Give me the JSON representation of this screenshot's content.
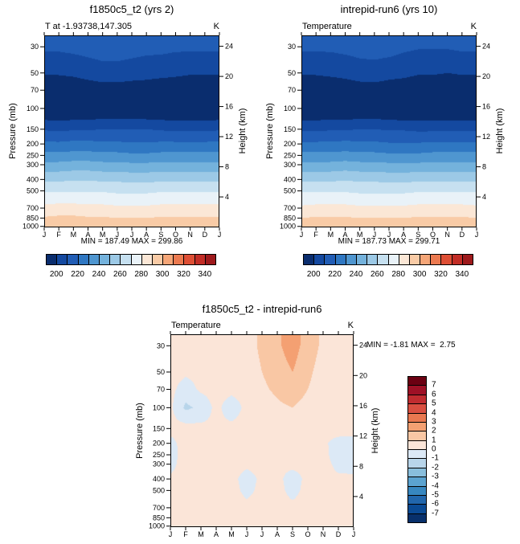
{
  "chart_data": [
    {
      "type": "filled-contour",
      "title": "f1850c5_t2 (yrs 2)",
      "sub_left": "T at -1.93738,147.305",
      "sub_right": "K",
      "minmax": "MIN = 187.49 MAX = 299.86",
      "ylabel_left": "Pressure (mb)",
      "ylabel_right": "Height (km)",
      "x_ticklabels": [
        "J",
        "F",
        "M",
        "A",
        "M",
        "J",
        "J",
        "A",
        "S",
        "O",
        "N",
        "D",
        "J"
      ],
      "y_ticklabels": [
        "30",
        "50",
        "70",
        "100",
        "150",
        "200",
        "250",
        "300",
        "400",
        "500",
        "700",
        "850",
        "1000"
      ],
      "height_ticks_km": [
        4,
        8,
        12,
        16,
        20,
        24
      ],
      "y_axis": "log-pressure",
      "ylim_mb": [
        30,
        1000
      ],
      "bins": {
        "start": 190,
        "size": 10,
        "unit": "K"
      },
      "colors": [
        "#0a2d6e",
        "#1449a0",
        "#215db5",
        "#2f77c2",
        "#4f96d0",
        "#74b2dc",
        "#9cc9e6",
        "#c6e0f0",
        "#e9f2f8",
        "#fbe7d6",
        "#f9cba6",
        "#f5a678",
        "#ec7a50",
        "#de4f35",
        "#c22d26",
        "#9e1a1c"
      ],
      "colorbar_labels": [
        "200",
        "220",
        "240",
        "260",
        "280",
        "300",
        "320",
        "340"
      ],
      "colorbar_label_boundaries": [
        1,
        3,
        5,
        7,
        9,
        11,
        13,
        15
      ],
      "grid": {
        "levels_mb": [
          30,
          50,
          70,
          100,
          150,
          200,
          250,
          300,
          400,
          500,
          700,
          850,
          1000
        ],
        "months": [
          "J",
          "F",
          "M",
          "A",
          "M",
          "J",
          "J",
          "A",
          "S",
          "O",
          "N",
          "D",
          "J"
        ],
        "values": [
          [
            212,
            212,
            213,
            214,
            215,
            215,
            214,
            213,
            213,
            212,
            212,
            212,
            212
          ],
          [
            201,
            201,
            202,
            204,
            206,
            206,
            205,
            204,
            203,
            202,
            201,
            201,
            201
          ],
          [
            193,
            193,
            193,
            194,
            195,
            195,
            194,
            194,
            193,
            193,
            192,
            192,
            193
          ],
          [
            189,
            188,
            189,
            189,
            190,
            190,
            190,
            189,
            189,
            188,
            188,
            188,
            189
          ],
          [
            209,
            208,
            209,
            209,
            210,
            210,
            210,
            210,
            209,
            208,
            208,
            208,
            209
          ],
          [
            222,
            222,
            223,
            223,
            222,
            222,
            221,
            221,
            222,
            222,
            222,
            222,
            222
          ],
          [
            233,
            233,
            234,
            234,
            233,
            233,
            232,
            232,
            233,
            233,
            233,
            233,
            233
          ],
          [
            243,
            243,
            244,
            244,
            243,
            243,
            242,
            242,
            243,
            243,
            243,
            243,
            243
          ],
          [
            258,
            258,
            259,
            259,
            258,
            258,
            257,
            257,
            258,
            258,
            258,
            258,
            258
          ],
          [
            269,
            269,
            269,
            269,
            269,
            268,
            268,
            268,
            269,
            269,
            269,
            269,
            269
          ],
          [
            283,
            284,
            284,
            283,
            283,
            282,
            282,
            282,
            283,
            283,
            283,
            283,
            283
          ],
          [
            291,
            292,
            292,
            291,
            291,
            290,
            290,
            290,
            291,
            291,
            291,
            291,
            291
          ],
          [
            299,
            300,
            300,
            299,
            299,
            298,
            298,
            298,
            299,
            299,
            299,
            299,
            299
          ]
        ]
      }
    },
    {
      "type": "filled-contour",
      "title": "intrepid-run6 (yrs 10)",
      "sub_left": "Temperature",
      "sub_right": "K",
      "minmax": "MIN = 187.73 MAX = 299.71",
      "ylabel_left": "Pressure (mb)",
      "ylabel_right": "Height (km)",
      "x_ticklabels": [
        "J",
        "F",
        "M",
        "A",
        "M",
        "J",
        "J",
        "A",
        "S",
        "O",
        "N",
        "D",
        "J"
      ],
      "y_ticklabels": [
        "30",
        "50",
        "70",
        "100",
        "150",
        "200",
        "250",
        "300",
        "400",
        "500",
        "700",
        "850",
        "1000"
      ],
      "height_ticks_km": [
        4,
        8,
        12,
        16,
        20,
        24
      ],
      "y_axis": "log-pressure",
      "ylim_mb": [
        30,
        1000
      ],
      "bins": {
        "start": 190,
        "size": 10,
        "unit": "K"
      },
      "colors": [
        "#0a2d6e",
        "#1449a0",
        "#215db5",
        "#2f77c2",
        "#4f96d0",
        "#74b2dc",
        "#9cc9e6",
        "#c6e0f0",
        "#e9f2f8",
        "#fbe7d6",
        "#f9cba6",
        "#f5a678",
        "#ec7a50",
        "#de4f35",
        "#c22d26",
        "#9e1a1c"
      ],
      "colorbar_labels": [
        "200",
        "220",
        "240",
        "260",
        "280",
        "300",
        "320",
        "340"
      ],
      "colorbar_label_boundaries": [
        1,
        3,
        5,
        7,
        9,
        11,
        13,
        15
      ],
      "grid": {
        "levels_mb": [
          30,
          50,
          70,
          100,
          150,
          200,
          250,
          300,
          400,
          500,
          700,
          850,
          1000
        ],
        "months": [
          "J",
          "F",
          "M",
          "A",
          "M",
          "J",
          "J",
          "A",
          "S",
          "O",
          "N",
          "D",
          "J"
        ],
        "values": [
          [
            212,
            212,
            212,
            213,
            214,
            214,
            214,
            212,
            211,
            211,
            211,
            212,
            212
          ],
          [
            201,
            201,
            202,
            203,
            205,
            206,
            204,
            203,
            201,
            201,
            200,
            201,
            201
          ],
          [
            193,
            193,
            193,
            194,
            195,
            195,
            194,
            193,
            192,
            192,
            192,
            192,
            193
          ],
          [
            189,
            189,
            190,
            189,
            190,
            190,
            189,
            188,
            188,
            188,
            188,
            189,
            189
          ],
          [
            208,
            208,
            209,
            209,
            210,
            210,
            209,
            209,
            208,
            208,
            208,
            208,
            208
          ],
          [
            222,
            222,
            222,
            223,
            222,
            222,
            221,
            221,
            221,
            222,
            222,
            222,
            222
          ],
          [
            233,
            233,
            233,
            234,
            233,
            233,
            232,
            232,
            232,
            233,
            233,
            233,
            233
          ],
          [
            243,
            243,
            243,
            244,
            243,
            243,
            242,
            242,
            242,
            243,
            243,
            243,
            243
          ],
          [
            258,
            258,
            258,
            259,
            258,
            258,
            257,
            257,
            258,
            258,
            258,
            258,
            258
          ],
          [
            269,
            269,
            269,
            269,
            268,
            268,
            268,
            268,
            269,
            269,
            269,
            269,
            269
          ],
          [
            282,
            283,
            283,
            283,
            282,
            282,
            282,
            282,
            283,
            283,
            283,
            283,
            282
          ],
          [
            290,
            291,
            291,
            291,
            290,
            290,
            290,
            290,
            291,
            291,
            291,
            291,
            290
          ],
          [
            298,
            299,
            299,
            299,
            298,
            298,
            298,
            297,
            298,
            299,
            299,
            299,
            298
          ]
        ]
      }
    },
    {
      "type": "filled-contour",
      "title": "f1850c5_t2 - intrepid-run6",
      "sub_left": "Temperature",
      "sub_right": "K",
      "minmax": "MIN = -1.81 MAX =  2.75",
      "ylabel_left": "Pressure (mb)",
      "ylabel_right": "Height (km)",
      "x_ticklabels": [
        "J",
        "F",
        "M",
        "A",
        "M",
        "J",
        "J",
        "A",
        "S",
        "O",
        "N",
        "D",
        "J"
      ],
      "y_ticklabels": [
        "30",
        "50",
        "70",
        "100",
        "150",
        "200",
        "250",
        "300",
        "400",
        "500",
        "700",
        "850",
        "1000"
      ],
      "height_ticks_km": [
        4,
        8,
        12,
        16,
        20,
        24
      ],
      "y_axis": "log-pressure",
      "ylim_mb": [
        30,
        1000
      ],
      "bins": {
        "start": -8,
        "size": 1,
        "unit": "K"
      },
      "colors": [
        "#08306b",
        "#0a4a94",
        "#2166ac",
        "#3787c0",
        "#5ba3d0",
        "#89bedc",
        "#b8d5ea",
        "#dce9f6",
        "#fbe5d8",
        "#f9c7a4",
        "#f4a072",
        "#e97850",
        "#d94f41",
        "#c02c30",
        "#9e1126",
        "#6b0012"
      ],
      "colorbar_labels": [
        "7",
        "6",
        "5",
        "4",
        "3",
        "2",
        "1",
        "0",
        "-1",
        "-2",
        "-3",
        "-4",
        "-5",
        "-6",
        "-7"
      ],
      "colorbar_label_boundaries": [
        1,
        2,
        3,
        4,
        5,
        6,
        7,
        8,
        9,
        10,
        11,
        12,
        13,
        14,
        15
      ],
      "grid": {
        "levels_mb": [
          30,
          50,
          70,
          100,
          150,
          200,
          250,
          300,
          400,
          500,
          700,
          850,
          1000
        ],
        "months": [
          "J",
          "F",
          "M",
          "A",
          "M",
          "J",
          "J",
          "A",
          "S",
          "O",
          "N",
          "D",
          "J"
        ],
        "values": [
          [
            0.5,
            0.3,
            0.4,
            0.8,
            0.5,
            0.6,
            1.2,
            1.8,
            2.5,
            1.5,
            0.8,
            0.5,
            0.5
          ],
          [
            0.4,
            0.2,
            0.3,
            0.5,
            0.4,
            0.5,
            1.0,
            1.5,
            2.0,
            1.2,
            0.6,
            0.4,
            0.4
          ],
          [
            0.3,
            -0.5,
            0.2,
            0.4,
            0.3,
            0.4,
            0.8,
            1.2,
            1.6,
            1.0,
            0.5,
            0.3,
            0.3
          ],
          [
            0.2,
            -1.2,
            -0.8,
            0.3,
            -0.6,
            0.3,
            0.5,
            0.8,
            1.0,
            0.6,
            0.3,
            0.2,
            0.2
          ],
          [
            0.3,
            0.4,
            0.3,
            0.2,
            0.3,
            0.4,
            0.3,
            0.5,
            0.6,
            0.4,
            0.3,
            0.5,
            0.3
          ],
          [
            -0.3,
            0.4,
            0.5,
            0.3,
            0.4,
            0.2,
            0.3,
            0.4,
            0.5,
            0.3,
            0.2,
            -0.4,
            -0.3
          ],
          [
            -0.5,
            0.5,
            0.6,
            0.4,
            0.5,
            0.3,
            0.2,
            0.3,
            0.4,
            0.2,
            0.3,
            -0.5,
            -0.5
          ],
          [
            -0.4,
            0.6,
            0.5,
            0.3,
            0.4,
            0.2,
            0.3,
            0.2,
            0.3,
            0.3,
            0.4,
            -0.3,
            -0.4
          ],
          [
            0.2,
            0.5,
            0.4,
            0.3,
            0.3,
            -0.4,
            0.2,
            0.3,
            -0.5,
            0.3,
            0.3,
            0.2,
            0.2
          ],
          [
            0.3,
            0.4,
            0.3,
            0.2,
            0.4,
            -0.3,
            0.3,
            0.4,
            -0.4,
            0.4,
            0.4,
            0.3,
            0.3
          ],
          [
            0.4,
            0.3,
            0.4,
            0.4,
            0.5,
            0.3,
            0.4,
            0.5,
            0.3,
            0.5,
            0.5,
            0.4,
            0.4
          ],
          [
            0.5,
            0.4,
            0.5,
            0.5,
            0.6,
            0.4,
            0.5,
            0.6,
            0.4,
            0.6,
            0.6,
            0.5,
            0.5
          ],
          [
            0.5,
            0.5,
            0.6,
            0.5,
            0.6,
            0.5,
            0.6,
            0.7,
            0.5,
            0.7,
            0.7,
            0.6,
            0.5
          ]
        ]
      }
    }
  ]
}
